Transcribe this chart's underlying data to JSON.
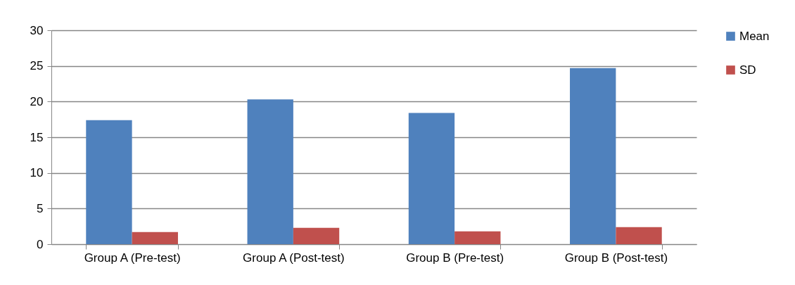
{
  "chart_data": {
    "type": "bar",
    "categories": [
      "Group A (Pre-test)",
      "Group A (Post-test)",
      "Group B (Pre-test)",
      "Group B (Post-test)"
    ],
    "series": [
      {
        "name": "Mean",
        "color": "#4f81bd",
        "values": [
          17.4,
          20.3,
          18.4,
          24.7
        ]
      },
      {
        "name": "SD",
        "color": "#c0504d",
        "values": [
          1.7,
          2.3,
          1.8,
          2.4
        ]
      }
    ],
    "ylim": [
      0,
      30
    ],
    "yticks": [
      0,
      5,
      10,
      15,
      20,
      25,
      30
    ],
    "grid": "y",
    "legend": "right"
  }
}
